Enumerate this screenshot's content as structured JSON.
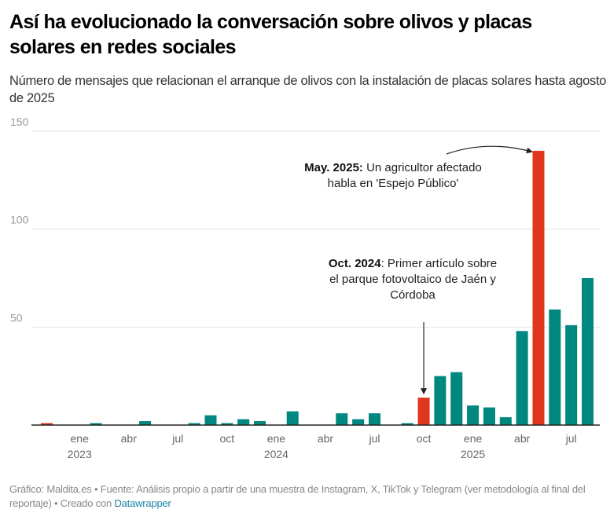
{
  "header": {
    "title": "Así ha evolucionado la conversación sobre olivos y placas solares en redes sociales",
    "subtitle": "Número de mensajes que relacionan el arranque de olivos con la instalación de placas solares hasta agosto de 2025"
  },
  "footer": {
    "text": "Gráfico: Maldita.es • Fuente: Análisis propio a partir de una muestra de Instagram, X, TikTok y Telegram (ver metodología al final del reportaje) • Creado con ",
    "link_label": "Datawrapper"
  },
  "colors": {
    "default_bar": "#00877f",
    "highlight_bar": "#e0361e",
    "grid": "#e6e6e6",
    "axis": "#222222"
  },
  "chart_data": {
    "type": "bar",
    "title": "Así ha evolucionado la conversación sobre olivos y placas solares en redes sociales",
    "xlabel": "",
    "ylabel": "Número de mensajes",
    "ylim": [
      0,
      150
    ],
    "yticks": [
      50,
      100,
      150
    ],
    "grid": true,
    "categories": [
      "2022-11",
      "2022-12",
      "2023-01",
      "2023-02",
      "2023-03",
      "2023-04",
      "2023-05",
      "2023-06",
      "2023-07",
      "2023-08",
      "2023-09",
      "2023-10",
      "2023-11",
      "2023-12",
      "2024-01",
      "2024-02",
      "2024-03",
      "2024-04",
      "2024-05",
      "2024-06",
      "2024-07",
      "2024-08",
      "2024-09",
      "2024-10",
      "2024-11",
      "2024-12",
      "2025-01",
      "2025-02",
      "2025-03",
      "2025-04",
      "2025-05",
      "2025-06",
      "2025-07",
      "2025-08"
    ],
    "values": [
      1,
      0,
      0,
      1,
      0,
      0,
      2,
      0,
      0,
      1,
      5,
      1,
      3,
      2,
      0,
      7,
      0,
      0,
      6,
      3,
      6,
      0,
      1,
      14,
      25,
      27,
      10,
      9,
      4,
      48,
      140,
      59,
      51,
      75
    ],
    "highlighted": [
      "2022-11",
      "2024-10",
      "2025-05"
    ],
    "xtick_labels": [
      {
        "category": "2023-01",
        "month": "ene",
        "year": "2023"
      },
      {
        "category": "2023-04",
        "month": "abr",
        "year": ""
      },
      {
        "category": "2023-07",
        "month": "jul",
        "year": ""
      },
      {
        "category": "2023-10",
        "month": "oct",
        "year": ""
      },
      {
        "category": "2024-01",
        "month": "ene",
        "year": "2024"
      },
      {
        "category": "2024-04",
        "month": "abr",
        "year": ""
      },
      {
        "category": "2024-07",
        "month": "jul",
        "year": ""
      },
      {
        "category": "2024-10",
        "month": "oct",
        "year": ""
      },
      {
        "category": "2025-01",
        "month": "ene",
        "year": "2025"
      },
      {
        "category": "2025-04",
        "month": "abr",
        "year": ""
      },
      {
        "category": "2025-07",
        "month": "jul",
        "year": ""
      }
    ],
    "annotations": [
      {
        "target": "2025-05",
        "bold": "May. 2025:",
        "lines": [
          "Un agricultor afectado",
          "habla en 'Espejo Público'"
        ]
      },
      {
        "target": "2024-10",
        "bold": "Oct. 2024",
        "lines": [
          ": Primer artículo sobre",
          "el parque fotovoltaico de Jaén y",
          "Córdoba"
        ]
      }
    ]
  }
}
